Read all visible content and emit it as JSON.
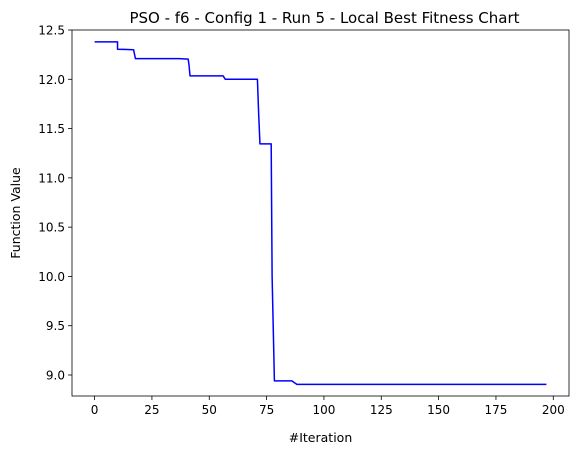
{
  "chart_data": {
    "type": "line",
    "title": "PSO - f6 - Config 1 - Run 5 - Local Best Fitness Chart",
    "xlabel": "#Iteration",
    "ylabel": "Function Value",
    "xlim": [
      -9.85,
      206.85
    ],
    "ylim": [
      8.787,
      12.5
    ],
    "xticks": [
      0,
      25,
      50,
      75,
      100,
      125,
      150,
      175,
      200
    ],
    "yticks": [
      9.0,
      9.5,
      10.0,
      10.5,
      11.0,
      11.5,
      12.0,
      12.5
    ],
    "xtick_labels": [
      "0",
      "25",
      "50",
      "75",
      "100",
      "125",
      "150",
      "175",
      "200"
    ],
    "ytick_labels": [
      "9.0",
      "9.5",
      "10.0",
      "10.5",
      "11.0",
      "11.5",
      "12.0",
      "12.5"
    ],
    "grid": false,
    "legend": "none",
    "series": [
      {
        "color": "#0000ff",
        "x": [
          0,
          10,
          10,
          17,
          17.8,
          37,
          40.8,
          40.8,
          41.2,
          41.6,
          56,
          57,
          71,
          71.5,
          72.1,
          77,
          77.4,
          78.4,
          86,
          88.2,
          197
        ],
        "y": [
          12.38,
          12.38,
          12.305,
          12.3,
          12.21,
          12.21,
          12.205,
          12.205,
          12.14,
          12.035,
          12.035,
          12.0,
          12.0,
          11.67,
          11.345,
          11.345,
          10.0,
          8.94,
          8.94,
          8.905,
          8.905
        ]
      }
    ]
  }
}
